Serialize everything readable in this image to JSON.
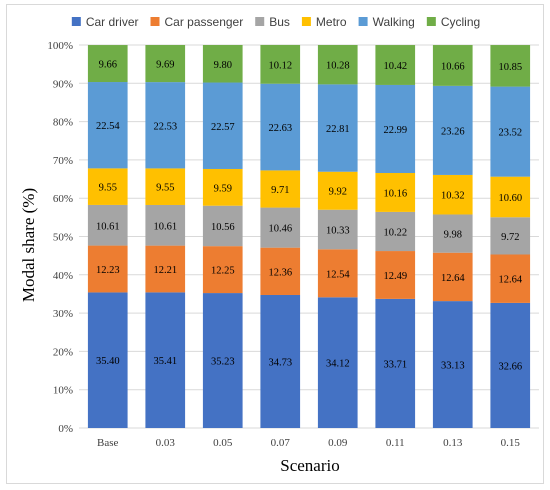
{
  "chart_data": {
    "type": "bar",
    "stacked": true,
    "xlabel": "Scenario",
    "ylabel": "Modal share (%)",
    "ylim": [
      0,
      100
    ],
    "ytick_labels": [
      "0%",
      "10%",
      "20%",
      "30%",
      "40%",
      "50%",
      "60%",
      "70%",
      "80%",
      "90%",
      "100%"
    ],
    "grid": "horizontal",
    "legend_position": "top",
    "categories": [
      "Base",
      "0.03",
      "0.05",
      "0.07",
      "0.09",
      "0.11",
      "0.13",
      "0.15"
    ],
    "series": [
      {
        "name": "Car driver",
        "color": "#4472c4",
        "values": [
          35.4,
          35.41,
          35.23,
          34.73,
          34.12,
          33.71,
          33.13,
          32.66
        ],
        "labels": [
          "35.40",
          "35.41",
          "35.23",
          "34.73",
          "34.12",
          "33.71",
          "33.13",
          "32.66"
        ]
      },
      {
        "name": "Car passenger",
        "color": "#ed7d31",
        "values": [
          12.23,
          12.21,
          12.25,
          12.36,
          12.54,
          12.49,
          12.64,
          12.64
        ],
        "labels": [
          "12.23",
          "12.21",
          "12.25",
          "12.36",
          "12.54",
          "12.49",
          "12.64",
          "12.64"
        ]
      },
      {
        "name": "Bus",
        "color": "#a5a5a5",
        "values": [
          10.61,
          10.61,
          10.56,
          10.46,
          10.33,
          10.22,
          9.98,
          9.72
        ],
        "labels": [
          "10.61",
          "10.61",
          "10.56",
          "10.46",
          "10.33",
          "10.22",
          "9.98",
          "9.72"
        ]
      },
      {
        "name": "Metro",
        "color": "#ffc000",
        "values": [
          9.55,
          9.55,
          9.59,
          9.71,
          9.92,
          10.16,
          10.32,
          10.6
        ],
        "labels": [
          "9.55",
          "9.55",
          "9.59",
          "9.71",
          "9.92",
          "10.16",
          "10.32",
          "10.60"
        ]
      },
      {
        "name": "Walking",
        "color": "#5b9bd5",
        "values": [
          22.54,
          22.53,
          22.57,
          22.63,
          22.81,
          22.99,
          23.26,
          23.52
        ],
        "labels": [
          "22.54",
          "22.53",
          "22.57",
          "22.63",
          "22.81",
          "22.99",
          "23.26",
          "23.52"
        ]
      },
      {
        "name": "Cycling",
        "color": "#70ad47",
        "values": [
          9.66,
          9.69,
          9.8,
          10.12,
          10.28,
          10.42,
          10.66,
          10.85
        ],
        "labels": [
          "9.66",
          "9.69",
          "9.80",
          "10.12",
          "10.28",
          "10.42",
          "10.66",
          "10.85"
        ]
      }
    ]
  }
}
